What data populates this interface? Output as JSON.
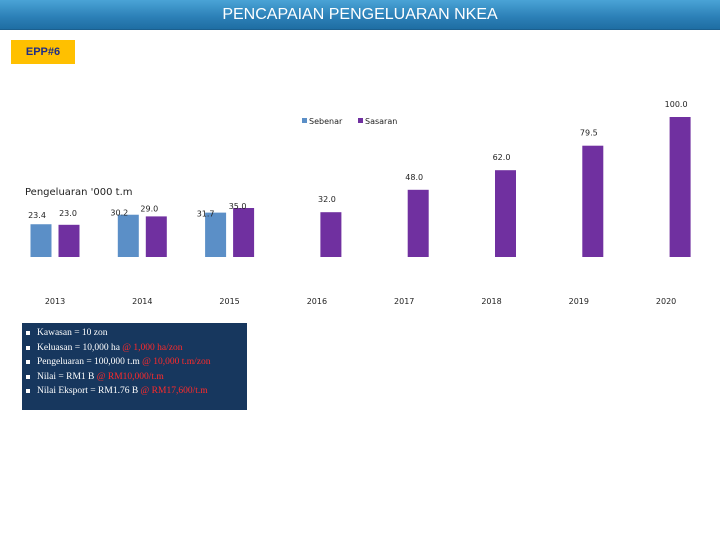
{
  "header": {
    "title": "PENCAPAIAN PENGELUARAN NKEA"
  },
  "badge": {
    "label": "EPP#6"
  },
  "chart_data": {
    "type": "bar",
    "title": "",
    "ylabel": "Pengeluaran '000 t.m",
    "xlabel": "",
    "categories": [
      "2013",
      "2014",
      "2015",
      "2016",
      "2017",
      "2018",
      "2019",
      "2020"
    ],
    "series": [
      {
        "name": "Sebenar",
        "color": "#5b8fc7",
        "values": [
          23.4,
          30.2,
          31.7,
          null,
          null,
          null,
          null,
          null
        ],
        "labels": [
          "23.4",
          "30.2",
          "31.7",
          "",
          "",
          "",
          "",
          ""
        ]
      },
      {
        "name": "Sasaran",
        "color": "#7030a0",
        "values": [
          23.0,
          29.0,
          35.0,
          32.0,
          48.0,
          62.0,
          79.5,
          100.0
        ],
        "labels": [
          "23.0",
          "29.0",
          "35.0",
          "32.0",
          "48.0",
          "62.0",
          "79.5",
          "100.0"
        ]
      }
    ],
    "ylim": [
      0,
      100
    ],
    "grid": false,
    "legend": "top-center"
  },
  "info": {
    "items": [
      {
        "text": "Kawasan = 10 zon",
        "highlight": ""
      },
      {
        "text": "Keluasan = 10,000 ha ",
        "highlight": "@ 1,000 ha/zon"
      },
      {
        "text": "Pengeluaran = 100,000 t.m ",
        "highlight": "@ 10,000 t.m/zon"
      },
      {
        "text": "Nilai = RM1 B ",
        "highlight": "@ RM10,000/t.m"
      },
      {
        "text": "Nilai Eksport = RM1.76 B ",
        "highlight": "@ RM17,600/t.m"
      }
    ]
  }
}
